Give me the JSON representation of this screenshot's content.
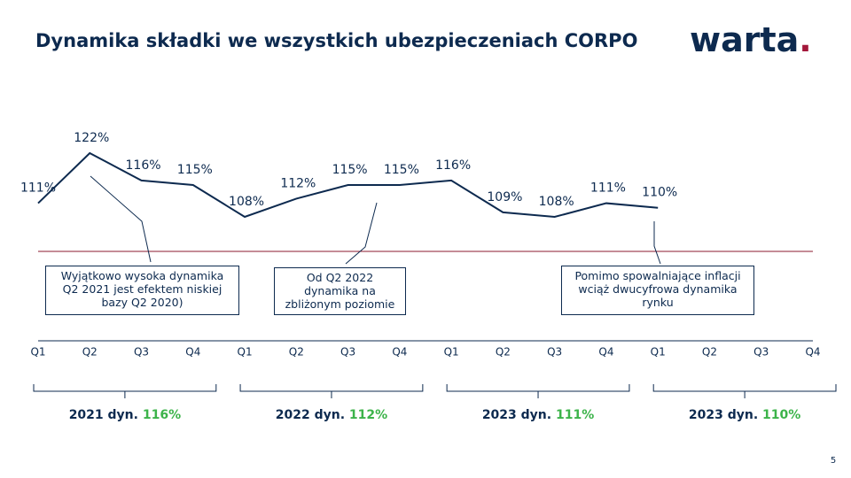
{
  "header": {
    "title": "Dynamika składki we wszystkich ubezpieczeniach CORPO",
    "logo": "warta",
    "logo_dot": "."
  },
  "chart_data": {
    "type": "line",
    "categories": [
      "Q1",
      "Q2",
      "Q3",
      "Q4",
      "Q1",
      "Q2",
      "Q3",
      "Q4",
      "Q1",
      "Q2",
      "Q3",
      "Q4",
      "Q1",
      "Q2",
      "Q3",
      "Q4"
    ],
    "series": [
      {
        "color": "#0d2a4f",
        "values": [
          111,
          122,
          116,
          115,
          108,
          112,
          115,
          115,
          116,
          109,
          108,
          111,
          110,
          null,
          null,
          null
        ],
        "value_labels": [
          "111%",
          "122%",
          "116%",
          "115%",
          "108%",
          "112%",
          "115%",
          "115%",
          "116%",
          "109%",
          "108%",
          "111%",
          "110%",
          null,
          null,
          null
        ]
      }
    ],
    "annotations": [
      "Wyjątkowo wysoka dynamika Q2 2021 jest efektem niskiej bazy Q2 2020)",
      "Od Q2 2022 dynamika na zbliżonym poziomie",
      "Pomimo spowalniające inflacji wciąż dwucyfrowa dynamika rynku"
    ],
    "year_summaries": [
      {
        "label": "2021 dyn.",
        "value_label": "116%"
      },
      {
        "label": "2022 dyn.",
        "value_label": "112%"
      },
      {
        "label": "2023 dyn.",
        "value_label": "111%"
      },
      {
        "label": "2023 dyn.",
        "value_label": "110%"
      }
    ]
  },
  "footer": {
    "page": "5"
  }
}
